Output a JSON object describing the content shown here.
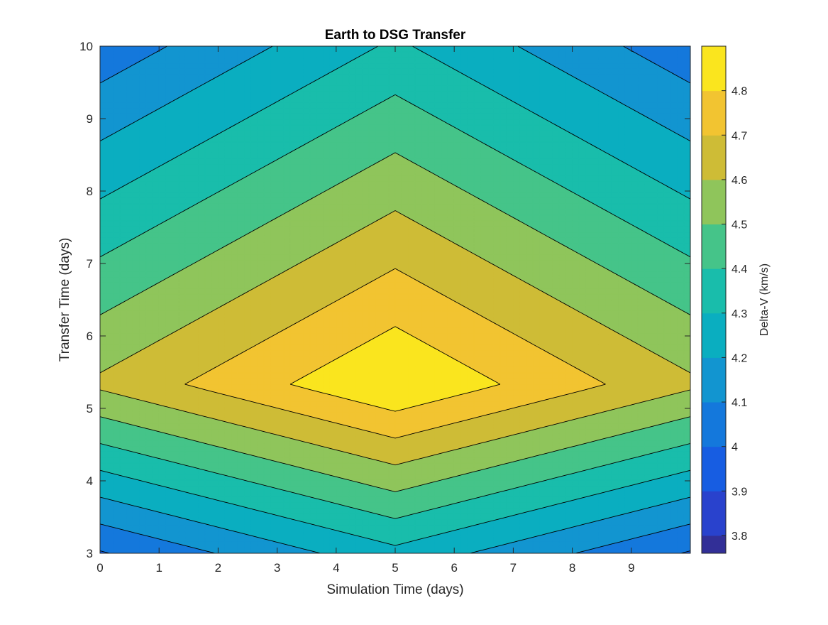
{
  "chart_data": {
    "type": "contour",
    "title": "Earth to DSG Transfer",
    "xlabel": "Simulation Time (days)",
    "ylabel": "Transfer Time (days)",
    "colorbar_label": "Delta-V (km/s)",
    "xlim": [
      0,
      10
    ],
    "ylim": [
      3,
      10
    ],
    "xticks": [
      "0",
      "1",
      "2",
      "3",
      "4",
      "5",
      "6",
      "7",
      "8",
      "9"
    ],
    "yticks": [
      "3",
      "4",
      "5",
      "6",
      "7",
      "8",
      "9",
      "10"
    ],
    "colorbar_range": [
      3.76,
      4.9
    ],
    "colorbar_ticks": [
      "3.8",
      "3.9",
      "4",
      "4.1",
      "4.2",
      "4.3",
      "4.4",
      "4.5",
      "4.6",
      "4.7",
      "4.8"
    ],
    "colormap": "parula",
    "peak": {
      "x": 5,
      "y": 5.33,
      "value": 4.9
    },
    "grid": false,
    "colorbar_position": "right"
  }
}
